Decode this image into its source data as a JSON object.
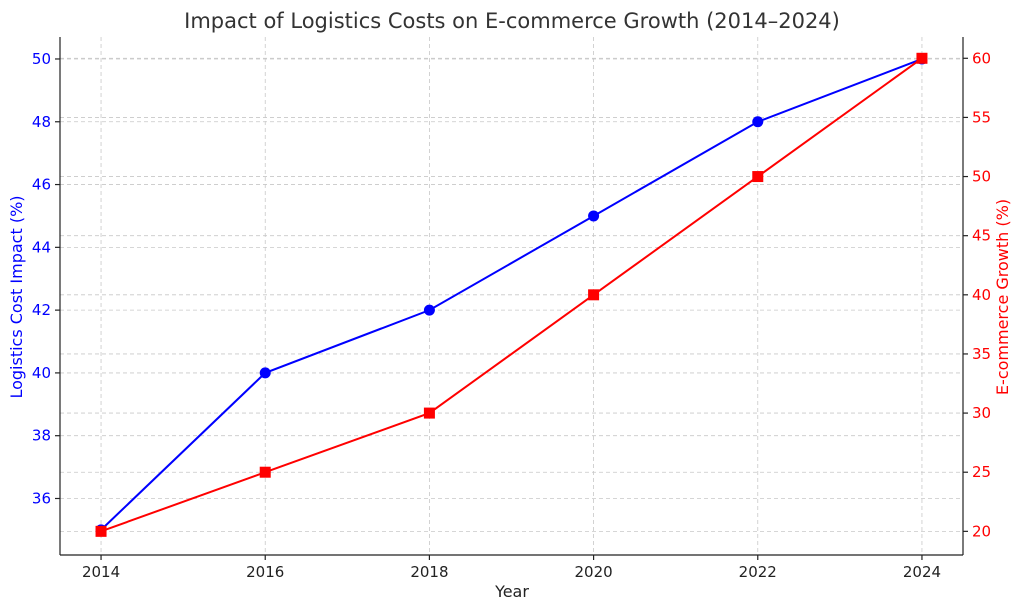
{
  "chart_data": {
    "type": "line",
    "title": "Impact of Logistics Costs on E-commerce Growth (2014–2024)",
    "xlabel": "Year",
    "x": [
      2014,
      2016,
      2018,
      2020,
      2022,
      2024
    ],
    "x_tick_labels": [
      "2014",
      "2016",
      "2018",
      "2020",
      "2022",
      "2024"
    ],
    "grid": true,
    "series": [
      {
        "axis": "left",
        "ylabel": "Logistics Cost Impact (%)",
        "values": [
          35,
          40,
          42,
          45,
          48,
          50
        ],
        "color": "#0000ff",
        "marker": "circle"
      },
      {
        "axis": "right",
        "ylabel": "E-commerce Growth (%)",
        "values": [
          20,
          25,
          30,
          40,
          50,
          60
        ],
        "color": "#ff0000",
        "marker": "square"
      }
    ],
    "y_left": {
      "ylim": [
        34.2,
        50.7
      ],
      "ticks": [
        36,
        38,
        40,
        42,
        44,
        46,
        48,
        50
      ],
      "tick_labels": [
        "36",
        "38",
        "40",
        "42",
        "44",
        "46",
        "48",
        "50"
      ],
      "color": "#0000ff"
    },
    "y_right": {
      "ylim": [
        18,
        61.8
      ],
      "ticks": [
        20,
        25,
        30,
        35,
        40,
        45,
        50,
        55,
        60
      ],
      "tick_labels": [
        "20",
        "25",
        "30",
        "35",
        "40",
        "45",
        "50",
        "55",
        "60"
      ],
      "color": "#ff0000"
    },
    "xlim": [
      2013.5,
      2024.5
    ]
  }
}
